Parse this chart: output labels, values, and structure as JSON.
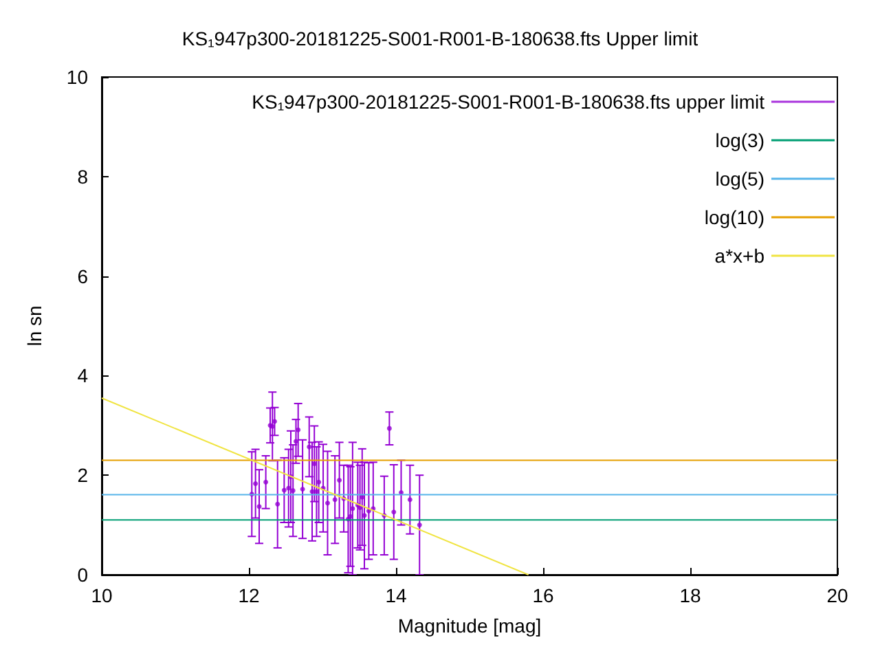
{
  "chart_data": {
    "type": "line",
    "title": "KS₁947p300-20181225-S001-R001-B-180638.fts Upper limit",
    "xlabel": "Magnitude [mag]",
    "ylabel": "ln sn",
    "xlim": [
      10,
      20
    ],
    "xticks": [
      10,
      12,
      14,
      16,
      18,
      20
    ],
    "ylim": [
      0,
      10
    ],
    "yticks": [
      0,
      2,
      4,
      6,
      8,
      10
    ],
    "grid": false,
    "legend": "top right",
    "series": [
      {
        "name": "KS₁947p300-20181225-S001-R001-B-180638.fts upper limit",
        "type": "scatter",
        "marker": "circle",
        "color": "#9400d3",
        "x": [
          12.04,
          12.09,
          12.14,
          12.23,
          12.29,
          12.32,
          12.35,
          12.39,
          12.48,
          12.54,
          12.57,
          12.6,
          12.64,
          12.67,
          12.73,
          12.82,
          12.86,
          12.89,
          12.92,
          12.95,
          13.01,
          13.07,
          13.17,
          13.23,
          13.29,
          13.35,
          13.38,
          13.41,
          13.48,
          13.51,
          13.54,
          13.57,
          13.63,
          13.69,
          13.84,
          13.91,
          13.97,
          14.07,
          14.19,
          14.32
        ],
        "values": [
          1.62,
          1.83,
          1.37,
          1.86,
          3.0,
          2.98,
          3.08,
          1.42,
          1.7,
          1.74,
          1.97,
          1.69,
          2.68,
          2.91,
          1.72,
          2.57,
          1.67,
          2.23,
          1.67,
          1.86,
          1.74,
          1.44,
          1.51,
          1.9,
          1.53,
          1.12,
          1.17,
          1.33,
          1.4,
          1.35,
          1.56,
          1.19,
          1.28,
          1.33,
          1.19,
          2.94,
          1.26,
          1.65,
          1.51,
          1.0
        ],
        "errors": [
          0.85,
          0.69,
          0.74,
          0.53,
          0.35,
          0.69,
          0.28,
          0.88,
          0.65,
          0.78,
          0.92,
          0.92,
          0.44,
          0.53,
          0.99,
          0.6,
          0.99,
          0.76,
          0.9,
          0.81,
          0.88,
          1.04,
          0.88,
          0.76,
          0.67,
          1.08,
          1.0,
          1.33,
          0.86,
          0.85,
          0.97,
          1.07,
          0.97,
          0.93,
          0.79,
          0.33,
          0.95,
          0.65,
          0.69,
          1.0
        ]
      },
      {
        "name": "log(3)",
        "color": "#009e73",
        "x": [
          10,
          20
        ],
        "values": [
          1.1,
          1.1
        ]
      },
      {
        "name": "log(5)",
        "color": "#56b4e9",
        "x": [
          10,
          20
        ],
        "values": [
          1.61,
          1.61
        ]
      },
      {
        "name": "log(10)",
        "color": "#e69f00",
        "x": [
          10,
          20
        ],
        "values": [
          2.3,
          2.3
        ]
      },
      {
        "name": "a*x+b",
        "color": "#f0e442",
        "x": [
          10,
          15.8
        ],
        "values": [
          3.55,
          0
        ]
      }
    ]
  }
}
